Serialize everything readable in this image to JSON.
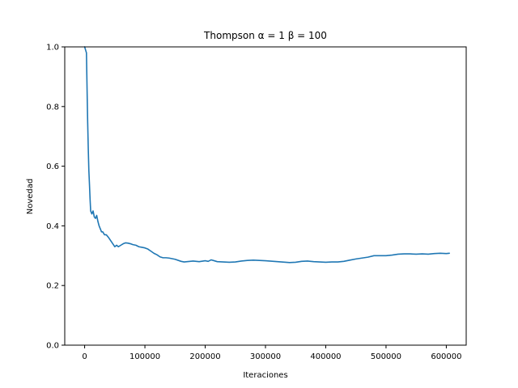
{
  "chart_data": {
    "type": "line",
    "title": "Thompson α = 1 β = 100",
    "xlabel": "Iteraciones",
    "ylabel": "Novedad",
    "xlim": [
      -33000,
      633000
    ],
    "ylim": [
      0.0,
      1.0
    ],
    "xticks": [
      0,
      100000,
      200000,
      300000,
      400000,
      500000,
      600000
    ],
    "xtick_labels": [
      "0",
      "100000",
      "200000",
      "300000",
      "400000",
      "500000",
      "600000"
    ],
    "yticks": [
      0.0,
      0.2,
      0.4,
      0.6,
      0.8,
      1.0
    ],
    "ytick_labels": [
      "0.0",
      "0.2",
      "0.4",
      "0.6",
      "0.8",
      "1.0"
    ],
    "grid": false,
    "color": "#1f77b4",
    "series": [
      {
        "x": [
          0,
          1500,
          3000,
          4000,
          5000,
          6000,
          7000,
          8000,
          9000,
          10000,
          12000,
          14000,
          16000,
          18000,
          20000,
          22000,
          24000,
          26000,
          28000,
          30000,
          33000,
          36000,
          40000,
          45000,
          50000,
          53000,
          56000,
          60000,
          64000,
          68000,
          72000,
          76000,
          80000,
          85000,
          90000,
          95000,
          100000,
          105000,
          110000,
          115000,
          120000,
          125000,
          130000,
          135000,
          140000,
          150000,
          160000,
          165000,
          170000,
          180000,
          190000,
          200000,
          205000,
          210000,
          215000,
          220000,
          230000,
          240000,
          250000,
          260000,
          270000,
          280000,
          290000,
          300000,
          320000,
          340000,
          350000,
          360000,
          370000,
          380000,
          390000,
          400000,
          410000,
          420000,
          430000,
          440000,
          450000,
          460000,
          470000,
          480000,
          490000,
          500000,
          510000,
          520000,
          530000,
          540000,
          550000,
          560000,
          570000,
          580000,
          590000,
          600000,
          605000
        ],
        "y": [
          1.0,
          0.99,
          0.98,
          0.86,
          0.75,
          0.66,
          0.585,
          0.54,
          0.49,
          0.45,
          0.44,
          0.45,
          0.43,
          0.425,
          0.435,
          0.415,
          0.4,
          0.39,
          0.38,
          0.38,
          0.37,
          0.37,
          0.36,
          0.345,
          0.33,
          0.335,
          0.33,
          0.335,
          0.34,
          0.343,
          0.342,
          0.34,
          0.337,
          0.335,
          0.33,
          0.328,
          0.326,
          0.322,
          0.315,
          0.308,
          0.303,
          0.296,
          0.293,
          0.293,
          0.292,
          0.288,
          0.281,
          0.279,
          0.28,
          0.282,
          0.28,
          0.283,
          0.281,
          0.286,
          0.283,
          0.28,
          0.279,
          0.278,
          0.279,
          0.282,
          0.284,
          0.285,
          0.284,
          0.283,
          0.28,
          0.277,
          0.278,
          0.281,
          0.282,
          0.28,
          0.279,
          0.278,
          0.279,
          0.279,
          0.281,
          0.285,
          0.289,
          0.292,
          0.295,
          0.3,
          0.3,
          0.3,
          0.302,
          0.305,
          0.306,
          0.306,
          0.305,
          0.306,
          0.305,
          0.307,
          0.308,
          0.307,
          0.308
        ]
      }
    ]
  }
}
